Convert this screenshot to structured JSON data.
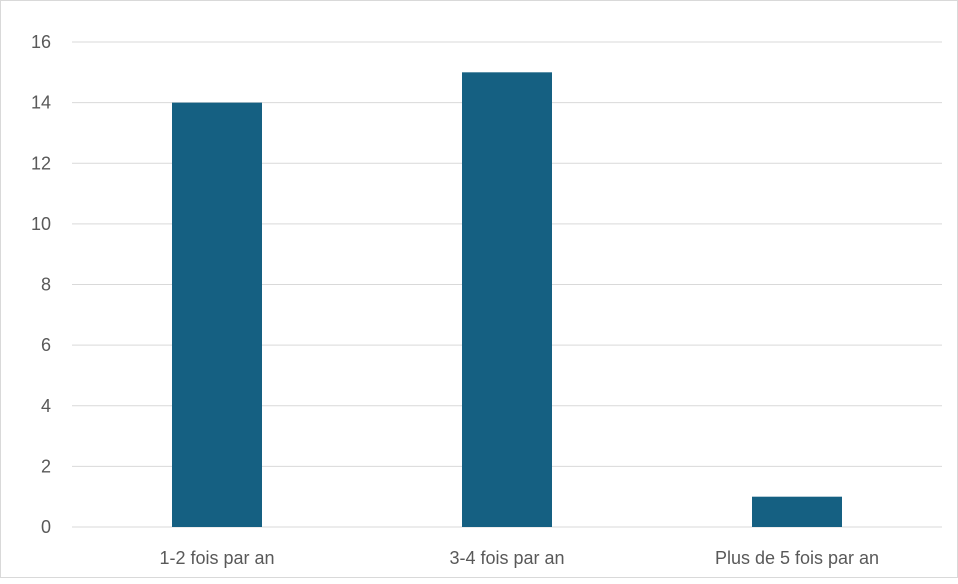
{
  "chart_data": {
    "type": "bar",
    "categories": [
      "1-2 fois par an",
      "3-4 fois par an",
      "Plus de 5 fois par an"
    ],
    "values": [
      14,
      15,
      1
    ],
    "title": "",
    "xlabel": "",
    "ylabel": "",
    "ylim": [
      0,
      16
    ],
    "yticks": [
      0,
      2,
      4,
      6,
      8,
      10,
      12,
      14,
      16
    ],
    "ytick_labels": [
      "0",
      "2",
      "4",
      "6",
      "8",
      "10",
      "12",
      "14",
      "16"
    ],
    "grid": true,
    "legend": "none",
    "colors": {
      "bar": "#156082",
      "grid": "#d9d9d9",
      "axis": "#d9d9d9",
      "text": "#595959"
    }
  }
}
